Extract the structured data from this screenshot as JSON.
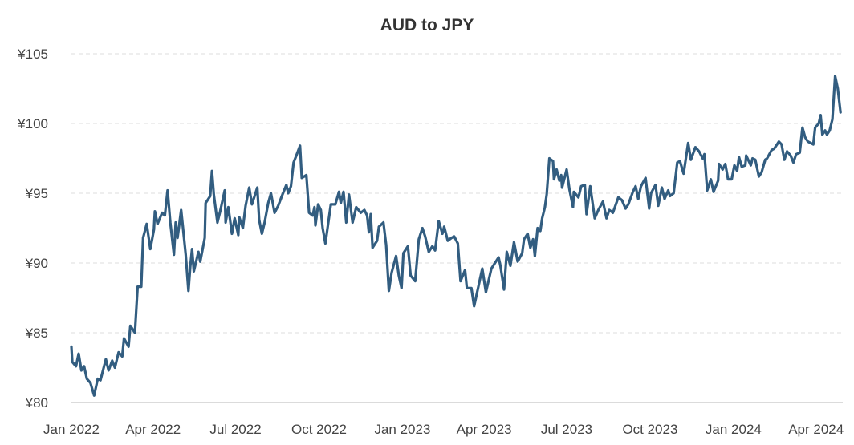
{
  "chart_data": {
    "type": "line",
    "title": "AUD to JPY",
    "xlabel": "",
    "ylabel": "",
    "x_unit": "days since 2022-01-01",
    "ylim": [
      80,
      105
    ],
    "grid": true,
    "line_color": "#325d80",
    "y_ticks": [
      {
        "value": 80,
        "label": "¥80"
      },
      {
        "value": 85,
        "label": "¥85"
      },
      {
        "value": 90,
        "label": "¥90"
      },
      {
        "value": 95,
        "label": "¥95"
      },
      {
        "value": 100,
        "label": "¥100"
      },
      {
        "value": 105,
        "label": "¥105"
      }
    ],
    "x_ticks": [
      {
        "value": 0,
        "label": "Jan 2022"
      },
      {
        "value": 90,
        "label": "Apr 2022"
      },
      {
        "value": 181,
        "label": "Jul 2022"
      },
      {
        "value": 273,
        "label": "Oct 2022"
      },
      {
        "value": 365,
        "label": "Jan 2023"
      },
      {
        "value": 455,
        "label": "Apr 2023"
      },
      {
        "value": 546,
        "label": "Jul 2023"
      },
      {
        "value": 638,
        "label": "Oct 2023"
      },
      {
        "value": 730,
        "label": "Jan 2024"
      },
      {
        "value": 821,
        "label": "Apr 2024"
      }
    ],
    "series": [
      {
        "name": "AUD/JPY",
        "points": [
          [
            0,
            84.0
          ],
          [
            1,
            82.9
          ],
          [
            5,
            82.6
          ],
          [
            8,
            83.5
          ],
          [
            11,
            82.3
          ],
          [
            14,
            82.6
          ],
          [
            17,
            81.7
          ],
          [
            21,
            81.4
          ],
          [
            25,
            80.5
          ],
          [
            29,
            81.7
          ],
          [
            32,
            81.6
          ],
          [
            38,
            83.1
          ],
          [
            41,
            82.3
          ],
          [
            45,
            83.0
          ],
          [
            48,
            82.5
          ],
          [
            52,
            83.6
          ],
          [
            56,
            83.3
          ],
          [
            58,
            84.6
          ],
          [
            63,
            84.0
          ],
          [
            65,
            85.5
          ],
          [
            70,
            85.0
          ],
          [
            73,
            88.3
          ],
          [
            77,
            88.3
          ],
          [
            79,
            91.8
          ],
          [
            83,
            92.8
          ],
          [
            87,
            91.0
          ],
          [
            91,
            92.4
          ],
          [
            92,
            93.7
          ],
          [
            95,
            92.8
          ],
          [
            100,
            93.6
          ],
          [
            103,
            93.4
          ],
          [
            106,
            95.2
          ],
          [
            109,
            92.9
          ],
          [
            113,
            90.6
          ],
          [
            115,
            92.9
          ],
          [
            117,
            91.8
          ],
          [
            121,
            93.8
          ],
          [
            126,
            90.6
          ],
          [
            129,
            88.0
          ],
          [
            131,
            89.7
          ],
          [
            133,
            91.0
          ],
          [
            135,
            89.4
          ],
          [
            140,
            90.8
          ],
          [
            142,
            90.1
          ],
          [
            147,
            91.8
          ],
          [
            148,
            94.3
          ],
          [
            153,
            94.8
          ],
          [
            155,
            96.6
          ],
          [
            157,
            94.9
          ],
          [
            161,
            92.9
          ],
          [
            164,
            93.7
          ],
          [
            169,
            95.2
          ],
          [
            170,
            92.9
          ],
          [
            173,
            94.0
          ],
          [
            177,
            92.1
          ],
          [
            180,
            93.2
          ],
          [
            184,
            92.0
          ],
          [
            185,
            93.3
          ],
          [
            189,
            92.5
          ],
          [
            192,
            94.1
          ],
          [
            196,
            95.4
          ],
          [
            199,
            94.2
          ],
          [
            205,
            95.4
          ],
          [
            207,
            93.1
          ],
          [
            210,
            92.1
          ],
          [
            213,
            92.9
          ],
          [
            217,
            94.3
          ],
          [
            220,
            95.0
          ],
          [
            224,
            93.6
          ],
          [
            228,
            94.1
          ],
          [
            232,
            94.8
          ],
          [
            237,
            95.6
          ],
          [
            239,
            95.0
          ],
          [
            242,
            95.5
          ],
          [
            245,
            97.2
          ],
          [
            248,
            97.7
          ],
          [
            252,
            98.4
          ],
          [
            254,
            96.1
          ],
          [
            259,
            96.3
          ],
          [
            262,
            93.6
          ],
          [
            266,
            93.4
          ],
          [
            268,
            94.0
          ],
          [
            269,
            92.7
          ],
          [
            272,
            94.2
          ],
          [
            275,
            93.8
          ],
          [
            277,
            92.5
          ],
          [
            280,
            91.4
          ],
          [
            283,
            92.8
          ],
          [
            286,
            94.2
          ],
          [
            291,
            94.2
          ],
          [
            295,
            95.1
          ],
          [
            297,
            94.3
          ],
          [
            300,
            95.1
          ],
          [
            303,
            92.9
          ],
          [
            306,
            94.9
          ],
          [
            310,
            92.9
          ],
          [
            314,
            94.0
          ],
          [
            319,
            93.6
          ],
          [
            323,
            93.8
          ],
          [
            326,
            93.4
          ],
          [
            328,
            92.2
          ],
          [
            330,
            93.5
          ],
          [
            332,
            91.1
          ],
          [
            337,
            91.6
          ],
          [
            339,
            92.6
          ],
          [
            344,
            92.9
          ],
          [
            347,
            91.3
          ],
          [
            350,
            88.0
          ],
          [
            353,
            89.3
          ],
          [
            358,
            90.5
          ],
          [
            361,
            89.1
          ],
          [
            364,
            88.2
          ],
          [
            366,
            90.7
          ],
          [
            371,
            91.2
          ],
          [
            374,
            89.1
          ],
          [
            379,
            88.7
          ],
          [
            383,
            91.7
          ],
          [
            387,
            92.5
          ],
          [
            390,
            91.9
          ],
          [
            394,
            90.8
          ],
          [
            398,
            91.2
          ],
          [
            401,
            90.9
          ],
          [
            405,
            93.0
          ],
          [
            409,
            92.1
          ],
          [
            411,
            92.6
          ],
          [
            415,
            91.6
          ],
          [
            419,
            91.8
          ],
          [
            422,
            91.9
          ],
          [
            426,
            91.4
          ],
          [
            429,
            88.7
          ],
          [
            434,
            89.5
          ],
          [
            436,
            88.2
          ],
          [
            441,
            88.2
          ],
          [
            444,
            86.9
          ],
          [
            450,
            88.7
          ],
          [
            453,
            89.6
          ],
          [
            457,
            87.9
          ],
          [
            463,
            89.6
          ],
          [
            467,
            90.0
          ],
          [
            471,
            90.4
          ],
          [
            473,
            89.8
          ],
          [
            477,
            88.1
          ],
          [
            480,
            90.8
          ],
          [
            484,
            89.8
          ],
          [
            488,
            91.5
          ],
          [
            492,
            90.1
          ],
          [
            497,
            90.7
          ],
          [
            499,
            91.7
          ],
          [
            503,
            92.1
          ],
          [
            506,
            91.1
          ],
          [
            509,
            91.7
          ],
          [
            511,
            90.5
          ],
          [
            514,
            92.5
          ],
          [
            517,
            92.3
          ],
          [
            519,
            93.2
          ],
          [
            522,
            94.0
          ],
          [
            524,
            94.9
          ],
          [
            527,
            97.5
          ],
          [
            531,
            97.3
          ],
          [
            532,
            96.0
          ],
          [
            535,
            96.7
          ],
          [
            538,
            95.9
          ],
          [
            540,
            96.3
          ],
          [
            541,
            95.4
          ],
          [
            546,
            96.7
          ],
          [
            549,
            95.3
          ],
          [
            553,
            94.0
          ],
          [
            554,
            95.1
          ],
          [
            559,
            94.7
          ],
          [
            562,
            95.5
          ],
          [
            566,
            95.6
          ],
          [
            568,
            93.5
          ],
          [
            572,
            95.5
          ],
          [
            577,
            93.2
          ],
          [
            581,
            93.8
          ],
          [
            586,
            94.4
          ],
          [
            590,
            93.2
          ],
          [
            593,
            93.8
          ],
          [
            597,
            93.6
          ],
          [
            603,
            94.7
          ],
          [
            607,
            94.5
          ],
          [
            611,
            93.9
          ],
          [
            614,
            94.2
          ],
          [
            619,
            95.1
          ],
          [
            622,
            95.5
          ],
          [
            625,
            94.6
          ],
          [
            628,
            95.5
          ],
          [
            633,
            96.1
          ],
          [
            637,
            93.9
          ],
          [
            639,
            95.0
          ],
          [
            644,
            95.6
          ],
          [
            647,
            94.1
          ],
          [
            651,
            95.4
          ],
          [
            654,
            94.6
          ],
          [
            658,
            95.2
          ],
          [
            660,
            94.8
          ],
          [
            664,
            95.0
          ],
          [
            668,
            97.2
          ],
          [
            671,
            97.3
          ],
          [
            675,
            96.4
          ],
          [
            680,
            98.6
          ],
          [
            683,
            97.4
          ],
          [
            688,
            98.3
          ],
          [
            692,
            98.0
          ],
          [
            696,
            97.5
          ],
          [
            698,
            97.8
          ],
          [
            701,
            95.2
          ],
          [
            705,
            96.0
          ],
          [
            708,
            95.1
          ],
          [
            713,
            95.9
          ],
          [
            714,
            97.1
          ],
          [
            718,
            96.7
          ],
          [
            721,
            97.1
          ],
          [
            724,
            96.0
          ],
          [
            728,
            96.0
          ],
          [
            731,
            97.0
          ],
          [
            734,
            96.6
          ],
          [
            736,
            97.6
          ],
          [
            739,
            96.9
          ],
          [
            743,
            97.0
          ],
          [
            744,
            97.7
          ],
          [
            749,
            97.0
          ],
          [
            751,
            97.5
          ],
          [
            754,
            97.4
          ],
          [
            758,
            96.2
          ],
          [
            761,
            96.5
          ],
          [
            765,
            97.4
          ],
          [
            767,
            97.5
          ],
          [
            772,
            98.1
          ],
          [
            775,
            98.2
          ],
          [
            780,
            98.7
          ],
          [
            783,
            98.5
          ],
          [
            786,
            97.4
          ],
          [
            789,
            98.0
          ],
          [
            793,
            97.7
          ],
          [
            796,
            97.2
          ],
          [
            799,
            97.8
          ],
          [
            803,
            97.9
          ],
          [
            806,
            99.7
          ],
          [
            809,
            99.0
          ],
          [
            812,
            98.7
          ],
          [
            818,
            98.5
          ],
          [
            820,
            99.7
          ],
          [
            824,
            100.0
          ],
          [
            826,
            100.6
          ],
          [
            828,
            99.2
          ],
          [
            831,
            99.5
          ],
          [
            833,
            99.2
          ],
          [
            836,
            99.5
          ],
          [
            839,
            100.3
          ],
          [
            842,
            103.4
          ],
          [
            845,
            102.5
          ],
          [
            848,
            100.8
          ]
        ]
      }
    ]
  }
}
